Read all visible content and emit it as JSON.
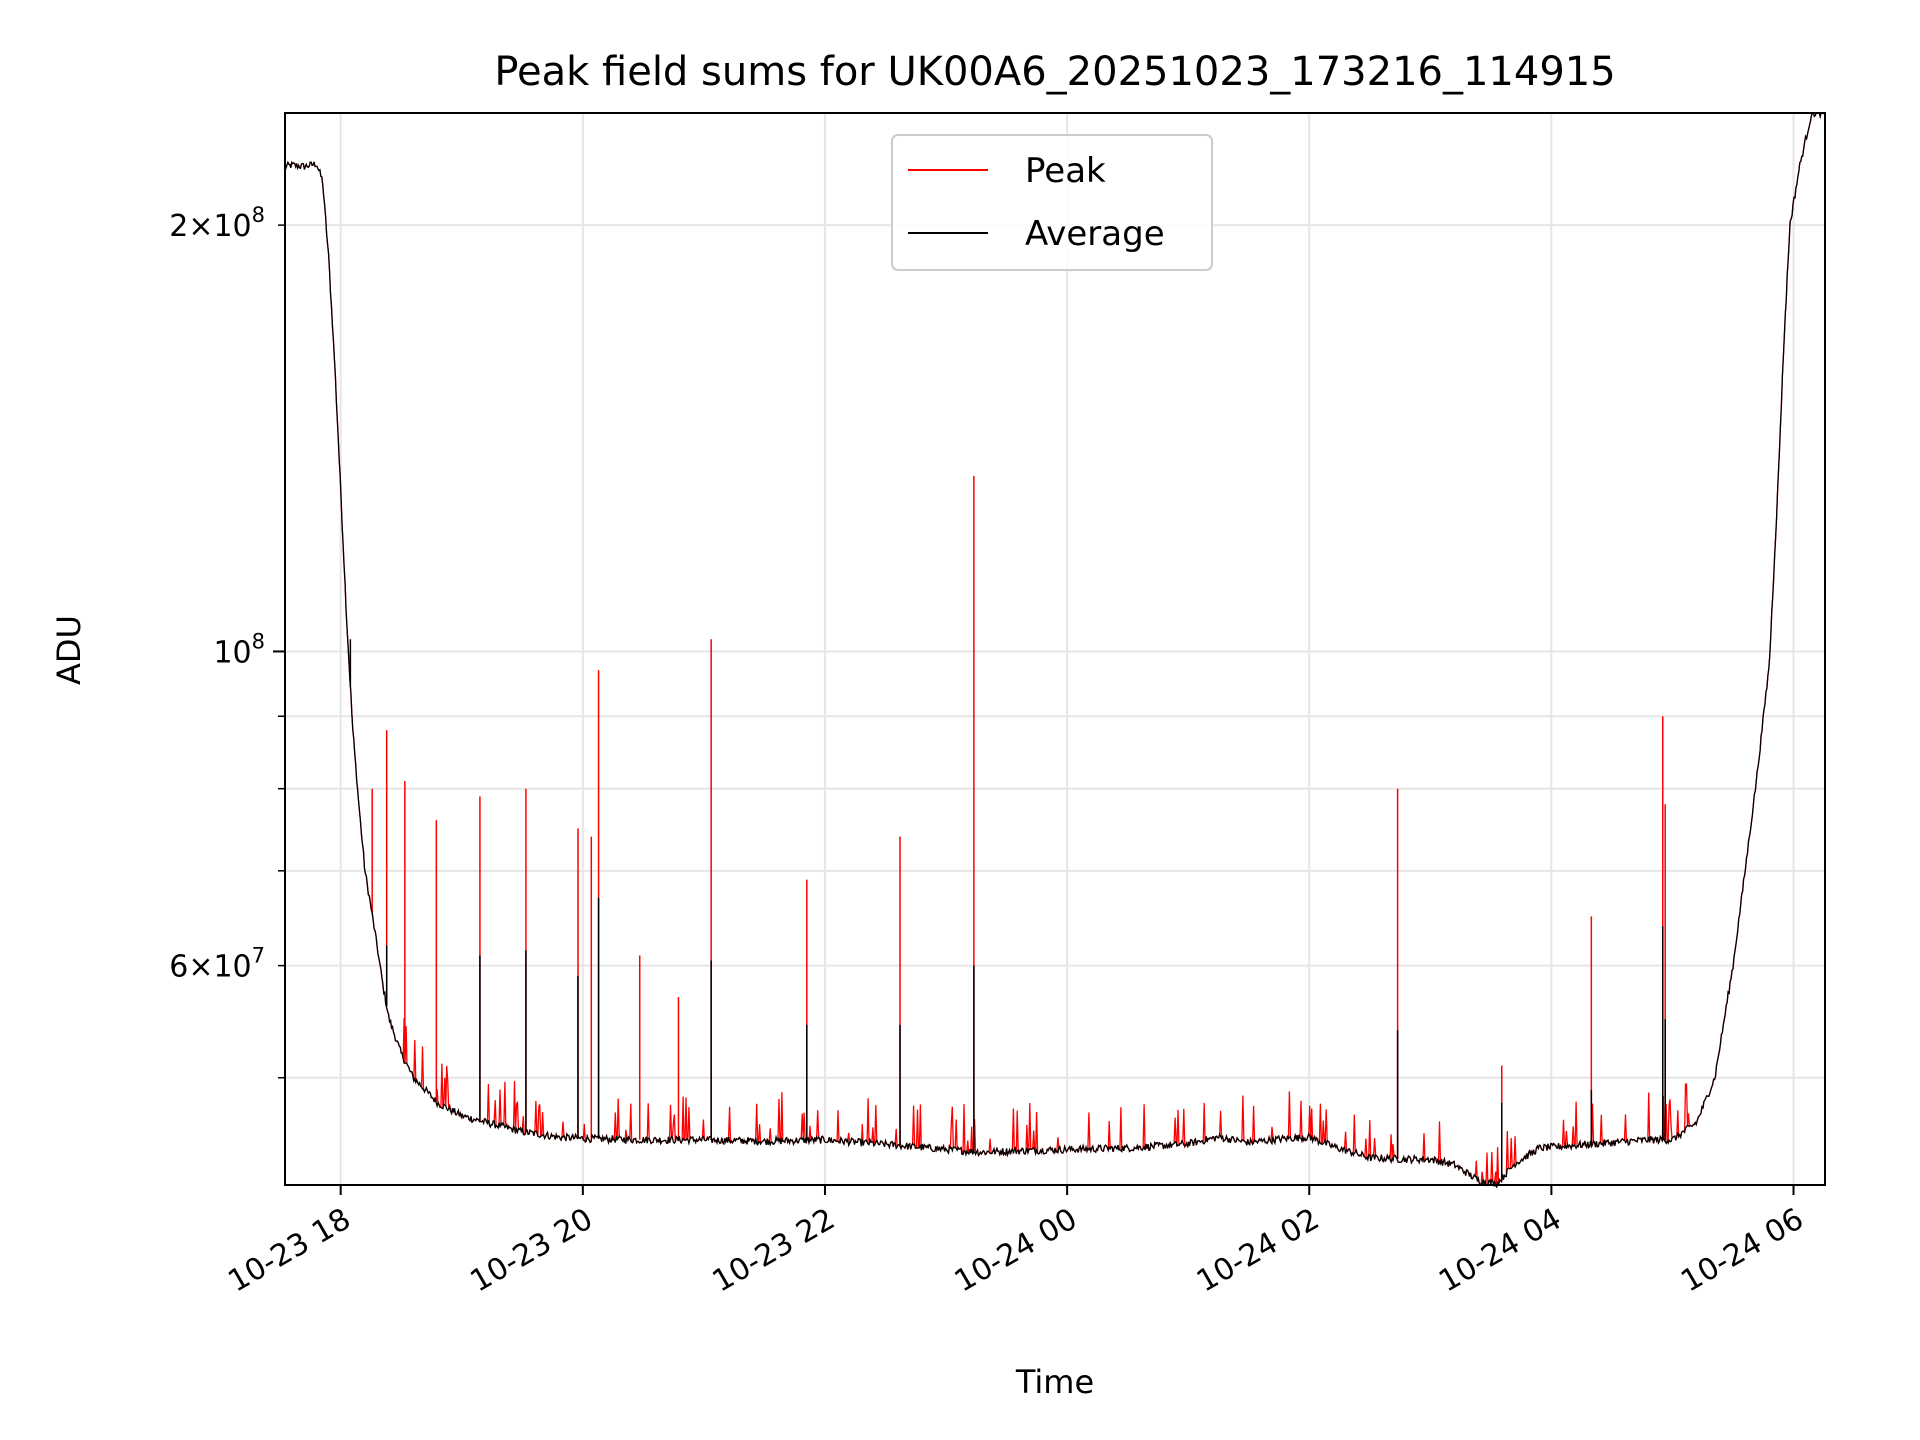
{
  "chart_data": {
    "type": "line",
    "title": "Peak field sums for UK00A6_20251023_173216_114915",
    "xlabel": "Time",
    "ylabel": "ADU",
    "yscale": "log",
    "ylim": [
      42000000,
      240000000
    ],
    "xlim_hours": [
      -0.46,
      12.26
    ],
    "grid": true,
    "legend_position": "top-center",
    "x_ticks": [
      {
        "value": 0,
        "label": "10-23 18"
      },
      {
        "value": 2,
        "label": "10-23 20"
      },
      {
        "value": 4,
        "label": "10-23 22"
      },
      {
        "value": 6,
        "label": "10-24 00"
      },
      {
        "value": 8,
        "label": "10-24 02"
      },
      {
        "value": 10,
        "label": "10-24 04"
      },
      {
        "value": 12,
        "label": "10-24 06"
      }
    ],
    "y_major_ticks": [
      {
        "value": 100000000,
        "base": "10",
        "exp": "8"
      }
    ],
    "y_minor_labeled_ticks": [
      {
        "value": 200000000,
        "mant": "2",
        "exp": "8"
      },
      {
        "value": 60000000,
        "mant": "6",
        "exp": "7"
      }
    ],
    "y_minor_unlabeled_ticks": [
      50000000,
      70000000,
      80000000,
      90000000
    ],
    "series": [
      {
        "name": "Peak",
        "color": "#ff0000",
        "spikes": [
          {
            "t": 0.26,
            "v": 80000000
          },
          {
            "t": 0.38,
            "v": 88000000
          },
          {
            "t": 0.53,
            "v": 81000000
          },
          {
            "t": 0.79,
            "v": 76000000
          },
          {
            "t": 1.15,
            "v": 79000000
          },
          {
            "t": 1.53,
            "v": 80000000
          },
          {
            "t": 1.96,
            "v": 75000000
          },
          {
            "t": 2.07,
            "v": 74000000
          },
          {
            "t": 2.13,
            "v": 97000000
          },
          {
            "t": 2.47,
            "v": 61000000
          },
          {
            "t": 2.79,
            "v": 57000000
          },
          {
            "t": 3.06,
            "v": 102000000
          },
          {
            "t": 3.85,
            "v": 69000000
          },
          {
            "t": 4.62,
            "v": 74000000
          },
          {
            "t": 5.23,
            "v": 133000000
          },
          {
            "t": 8.73,
            "v": 80000000
          },
          {
            "t": 9.59,
            "v": 51000000
          },
          {
            "t": 10.33,
            "v": 65000000
          },
          {
            "t": 10.92,
            "v": 90000000
          },
          {
            "t": 10.94,
            "v": 78000000
          }
        ]
      },
      {
        "name": "Average",
        "color": "#000000",
        "points": [
          [
            -0.46,
            220000000
          ],
          [
            -0.4,
            220500000
          ],
          [
            -0.3,
            220000000
          ],
          [
            -0.2,
            221000000
          ],
          [
            -0.15,
            215000000
          ],
          [
            -0.1,
            190000000
          ],
          [
            -0.05,
            160000000
          ],
          [
            0,
            130000000
          ],
          [
            0.05,
            105000000
          ],
          [
            0.1,
            88000000
          ],
          [
            0.15,
            78000000
          ],
          [
            0.2,
            70000000
          ],
          [
            0.25,
            66000000
          ],
          [
            0.3,
            62000000
          ],
          [
            0.35,
            58000000
          ],
          [
            0.4,
            55000000
          ],
          [
            0.5,
            52000000
          ],
          [
            0.6,
            50000000
          ],
          [
            0.7,
            49000000
          ],
          [
            0.8,
            48000000
          ],
          [
            1.0,
            47000000
          ],
          [
            1.2,
            46500000
          ],
          [
            1.5,
            45800000
          ],
          [
            1.8,
            45400000
          ],
          [
            2.0,
            45300000
          ],
          [
            2.5,
            45200000
          ],
          [
            3.0,
            45200000
          ],
          [
            3.5,
            45100000
          ],
          [
            4.0,
            45200000
          ],
          [
            4.3,
            45000000
          ],
          [
            4.6,
            44800000
          ],
          [
            5.0,
            44500000
          ],
          [
            5.3,
            44300000
          ],
          [
            5.6,
            44400000
          ],
          [
            6.0,
            44500000
          ],
          [
            6.5,
            44600000
          ],
          [
            7.0,
            44900000
          ],
          [
            7.25,
            45400000
          ],
          [
            7.5,
            45000000
          ],
          [
            7.8,
            45300000
          ],
          [
            8.0,
            45400000
          ],
          [
            8.2,
            44700000
          ],
          [
            8.5,
            43900000
          ],
          [
            8.8,
            43800000
          ],
          [
            9.0,
            43800000
          ],
          [
            9.2,
            43400000
          ],
          [
            9.4,
            42300000
          ],
          [
            9.55,
            42100000
          ],
          [
            9.7,
            43500000
          ],
          [
            9.9,
            44600000
          ],
          [
            10.2,
            44800000
          ],
          [
            10.5,
            45000000
          ],
          [
            10.8,
            45200000
          ],
          [
            11.0,
            45200000
          ],
          [
            11.2,
            46500000
          ],
          [
            11.35,
            50000000
          ],
          [
            11.5,
            60000000
          ],
          [
            11.6,
            70000000
          ],
          [
            11.7,
            82000000
          ],
          [
            11.8,
            98000000
          ],
          [
            11.87,
            130000000
          ],
          [
            11.92,
            165000000
          ],
          [
            11.97,
            200000000
          ],
          [
            12.05,
            220000000
          ],
          [
            12.15,
            240000000
          ]
        ],
        "spikes": [
          {
            "t": 0.08,
            "v": 102000000
          },
          {
            "t": 0.38,
            "v": 62000000
          },
          {
            "t": 1.15,
            "v": 61000000
          },
          {
            "t": 1.53,
            "v": 61500000
          },
          {
            "t": 1.96,
            "v": 59000000
          },
          {
            "t": 2.13,
            "v": 67000000
          },
          {
            "t": 3.06,
            "v": 60500000
          },
          {
            "t": 3.85,
            "v": 54500000
          },
          {
            "t": 4.62,
            "v": 54500000
          },
          {
            "t": 5.23,
            "v": 60000000
          },
          {
            "t": 8.73,
            "v": 54000000
          },
          {
            "t": 9.59,
            "v": 48000000
          },
          {
            "t": 10.33,
            "v": 49000000
          },
          {
            "t": 10.92,
            "v": 64000000
          },
          {
            "t": 10.94,
            "v": 55000000
          }
        ]
      }
    ]
  }
}
